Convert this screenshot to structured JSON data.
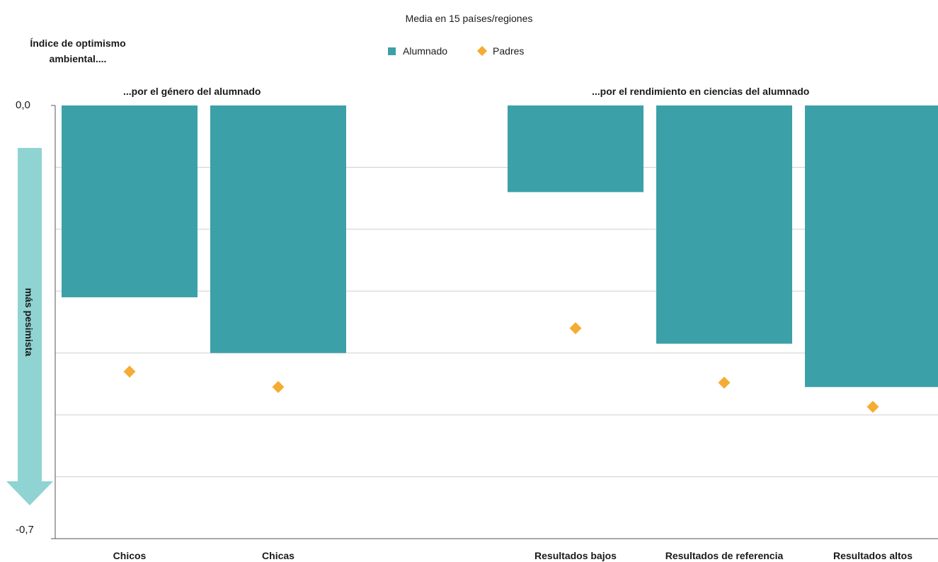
{
  "chart_data": {
    "type": "bar",
    "subtitle": "Media en 15 países/regiones",
    "ylabel": "Índice de optimismo ambiental....",
    "ylim": [
      -0.7,
      0.0
    ],
    "yticks": [
      "0,0",
      "-0,7"
    ],
    "grid": true,
    "legend_position": "top",
    "arrow_label": "más pesimista",
    "groups": [
      {
        "label": "...por el género del alumnado",
        "categories": [
          "Chicos",
          "Chicas"
        ]
      },
      {
        "label": "...por el rendimiento en ciencias del alumnado",
        "categories": [
          "Resultados bajos",
          "Resultados de referencia",
          "Resultados altos"
        ]
      }
    ],
    "categories": [
      "Chicos",
      "Chicas",
      "Resultados bajos",
      "Resultados de referencia",
      "Resultados altos"
    ],
    "series": [
      {
        "name": "Alumnado",
        "kind": "bar",
        "color": "#3ca0a8",
        "values": [
          -0.31,
          -0.4,
          -0.14,
          -0.385,
          -0.455
        ]
      },
      {
        "name": "Padres",
        "kind": "diamond",
        "color": "#f5ac33",
        "values": [
          -0.43,
          -0.455,
          -0.36,
          -0.448,
          -0.487
        ]
      }
    ]
  }
}
